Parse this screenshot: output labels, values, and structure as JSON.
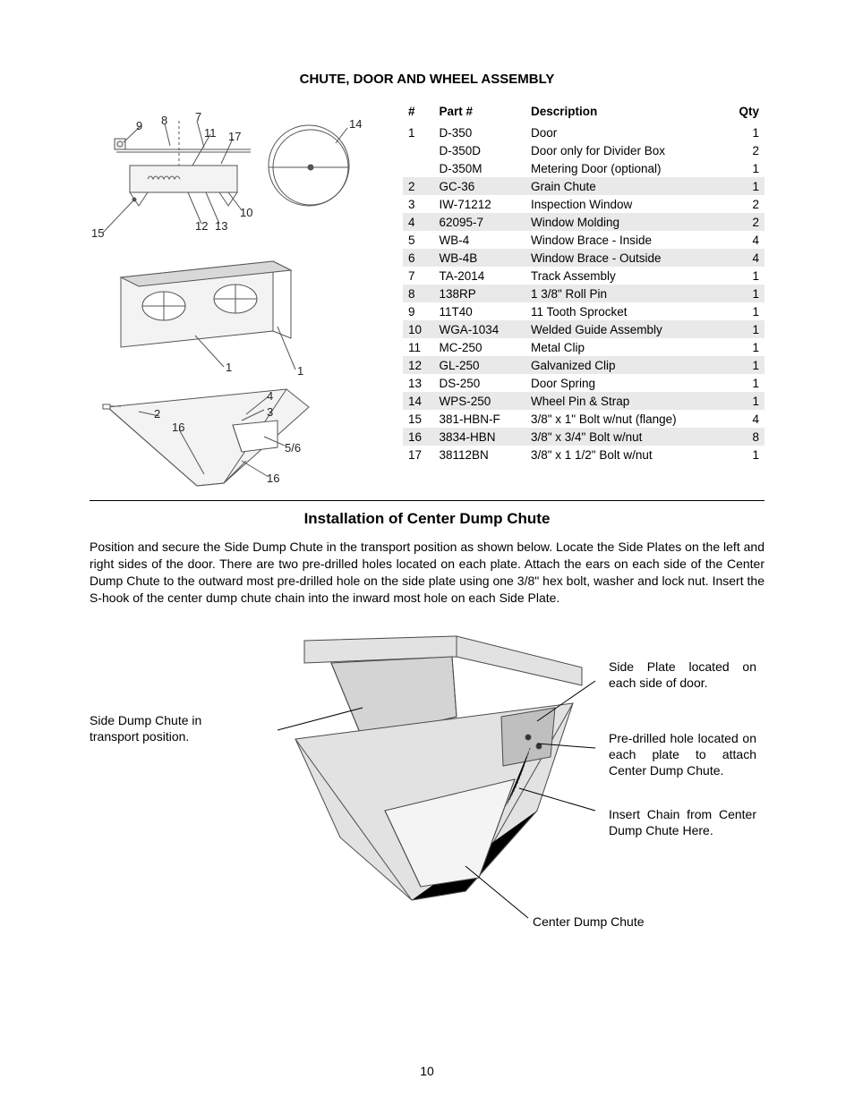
{
  "heading1": "CHUTE, DOOR AND WHEEL ASSEMBLY",
  "parts_table": {
    "headers": {
      "num": "#",
      "part": "Part #",
      "desc": "Description",
      "qty": "Qty"
    },
    "rows": [
      {
        "num": "1",
        "part": "D-350",
        "desc": "Door",
        "qty": "1",
        "alt": false
      },
      {
        "num": "",
        "part": "D-350D",
        "desc": "Door only for Divider Box",
        "qty": "2",
        "alt": false
      },
      {
        "num": "",
        "part": "D-350M",
        "desc": "Metering Door (optional)",
        "qty": "1",
        "alt": false
      },
      {
        "num": "2",
        "part": "GC-36",
        "desc": "Grain Chute",
        "qty": "1",
        "alt": true
      },
      {
        "num": "3",
        "part": "IW-71212",
        "desc": "Inspection Window",
        "qty": "2",
        "alt": false
      },
      {
        "num": "4",
        "part": "62095-7",
        "desc": "Window Molding",
        "qty": "2",
        "alt": true
      },
      {
        "num": "5",
        "part": "WB-4",
        "desc": "Window Brace - Inside",
        "qty": "4",
        "alt": false
      },
      {
        "num": "6",
        "part": "WB-4B",
        "desc": "Window Brace - Outside",
        "qty": "4",
        "alt": true
      },
      {
        "num": "7",
        "part": "TA-2014",
        "desc": "Track Assembly",
        "qty": "1",
        "alt": false
      },
      {
        "num": "8",
        "part": "138RP",
        "desc": "1 3/8\" Roll Pin",
        "qty": "1",
        "alt": true
      },
      {
        "num": "9",
        "part": "11T40",
        "desc": "11 Tooth Sprocket",
        "qty": "1",
        "alt": false
      },
      {
        "num": "10",
        "part": "WGA-1034",
        "desc": "Welded Guide Assembly",
        "qty": "1",
        "alt": true
      },
      {
        "num": "11",
        "part": "MC-250",
        "desc": "Metal Clip",
        "qty": "1",
        "alt": false
      },
      {
        "num": "12",
        "part": "GL-250",
        "desc": "Galvanized Clip",
        "qty": "1",
        "alt": true
      },
      {
        "num": "13",
        "part": "DS-250",
        "desc": "Door Spring",
        "qty": "1",
        "alt": false
      },
      {
        "num": "14",
        "part": "WPS-250",
        "desc": "Wheel Pin & Strap",
        "qty": "1",
        "alt": true
      },
      {
        "num": "15",
        "part": "381-HBN-F",
        "desc": "3/8\" x 1\" Bolt w/nut (flange)",
        "qty": "4",
        "alt": false
      },
      {
        "num": "16",
        "part": "3834-HBN",
        "desc": "3/8\" x 3/4\" Bolt w/nut",
        "qty": "8",
        "alt": true
      },
      {
        "num": "17",
        "part": "38112BN",
        "desc": "3/8\" x 1 1/2\" Bolt w/nut",
        "qty": "1",
        "alt": false
      }
    ]
  },
  "diagram_labels": {
    "l7": "7",
    "l8": "8",
    "l9": "9",
    "l11": "11",
    "l17": "17",
    "l14": "14",
    "l10": "10",
    "l12": "12",
    "l13": "13",
    "l15": "15",
    "l1a": "1",
    "l1b": "1",
    "l2": "2",
    "l4": "4",
    "l3": "3",
    "l5_6": "5/6",
    "l16a": "16",
    "l16b": "16"
  },
  "heading2": "Installation of Center Dump Chute",
  "body": "Position and secure the Side Dump Chute in the transport position as shown below.  Locate the Side Plates on the left and right sides of the door.  There are two pre-drilled holes located on each plate.  Attach the ears on each side of the Center Dump Chute to the outward most pre-drilled hole on the side plate using one 3/8\" hex bolt, washer and lock nut.  Insert the S-hook of the center dump chute chain into the inward most hole on each Side Plate.",
  "callouts": {
    "left1": "Side Dump Chute in transport position.",
    "right1": "Side Plate located on each side of door.",
    "right2": "Pre-drilled hole located on each plate to attach Center Dump Chute.",
    "right3": "Insert Chain from Center Dump Chute Here.",
    "bottom": "Center Dump Chute"
  },
  "page_number": "10",
  "colors": {
    "line": "#555555",
    "fill_light": "#f3f3f3",
    "fill_mid": "#d8d8d8",
    "sketch_fill": "#e2e2e2",
    "sketch_dark": "#bfbfbf"
  }
}
